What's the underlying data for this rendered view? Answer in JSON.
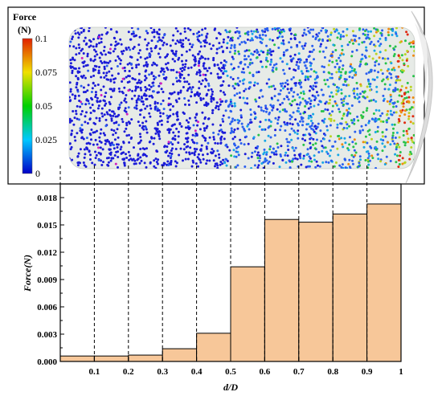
{
  "colorbar": {
    "title": "Force",
    "unit": "(N)",
    "tick_labels": [
      "0.1",
      "0.075",
      "0.05",
      "0.025",
      "0"
    ],
    "range": [
      0,
      0.1
    ],
    "colors": [
      "#0000c8",
      "#00c8ff",
      "#00d000",
      "#f0e000",
      "#e02000"
    ]
  },
  "particle_view": {
    "particle_colors": [
      "#1b1bd8",
      "#2a5ff0",
      "#17a6e6",
      "#27c24a",
      "#b9d423",
      "#f08a10",
      "#e02a10",
      "#d020c0"
    ],
    "background_color": "#e7ebe7"
  },
  "chart_data": {
    "type": "bar",
    "xlabel": "d/D",
    "ylabel": "Force(N)",
    "x_tick_labels": [
      "0.1",
      "0.2",
      "0.3",
      "0.4",
      "0.5",
      "0.6",
      "0.7",
      "0.8",
      "0.9",
      "1"
    ],
    "y_tick_labels": [
      "0.000",
      "0.003",
      "0.006",
      "0.009",
      "0.012",
      "0.015",
      "0.018"
    ],
    "xlim": [
      0,
      1
    ],
    "ylim": [
      0,
      0.0195
    ],
    "bins": [
      {
        "x0": 0.0,
        "x1": 0.1,
        "value": 0.0006
      },
      {
        "x0": 0.1,
        "x1": 0.2,
        "value": 0.0006
      },
      {
        "x0": 0.2,
        "x1": 0.3,
        "value": 0.0007
      },
      {
        "x0": 0.3,
        "x1": 0.4,
        "value": 0.0014
      },
      {
        "x0": 0.4,
        "x1": 0.5,
        "value": 0.0031
      },
      {
        "x0": 0.5,
        "x1": 0.6,
        "value": 0.0104
      },
      {
        "x0": 0.6,
        "x1": 0.7,
        "value": 0.0156
      },
      {
        "x0": 0.7,
        "x1": 0.8,
        "value": 0.0153
      },
      {
        "x0": 0.8,
        "x1": 0.9,
        "value": 0.0162
      },
      {
        "x0": 0.9,
        "x1": 1.0,
        "value": 0.0173
      }
    ],
    "bar_color": "#f7c799",
    "grid": false,
    "legend": "none"
  }
}
